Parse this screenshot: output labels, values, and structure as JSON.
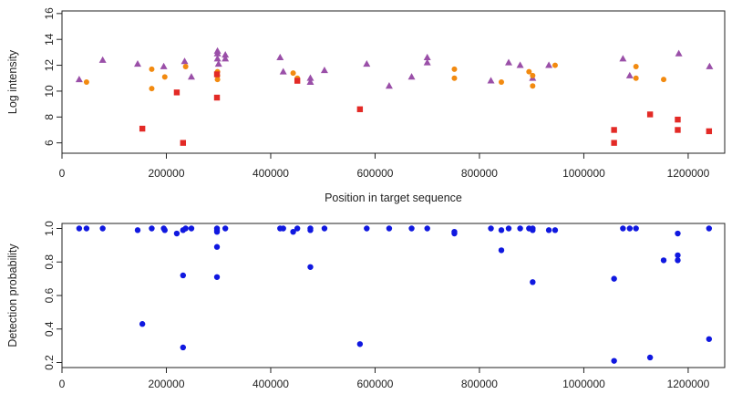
{
  "colors": {
    "purple": "#9a4fa8",
    "orange": "#f28a10",
    "red": "#e32a26",
    "blue": "#1018e0",
    "axis": "#222222"
  },
  "chart_data": [
    {
      "type": "scatter",
      "title": "",
      "xlabel": "Position in target sequence",
      "ylabel": "Log intensity",
      "xlim": [
        0,
        1270000
      ],
      "ylim": [
        5.2,
        16.2
      ],
      "xticks": [
        0,
        200000,
        400000,
        600000,
        800000,
        1000000,
        1200000
      ],
      "xtick_labels": [
        "0",
        "200000",
        "400000",
        "600000",
        "800000",
        "1000000",
        "1200000"
      ],
      "yticks": [
        6,
        8,
        10,
        12,
        14,
        16
      ],
      "ytick_labels": [
        "6",
        "8",
        "10",
        "12",
        "14",
        "16"
      ],
      "grid": false,
      "series": [
        {
          "marker": "triangle",
          "color": "purple",
          "points": [
            [
              33000,
              10.9
            ],
            [
              78000,
              12.4
            ],
            [
              145000,
              12.1
            ],
            [
              195000,
              11.9
            ],
            [
              235000,
              12.3
            ],
            [
              248000,
              11.1
            ],
            [
              298000,
              13.1
            ],
            [
              298000,
              12.9
            ],
            [
              298000,
              12.5
            ],
            [
              300000,
              12.1
            ],
            [
              313000,
              12.8
            ],
            [
              313000,
              12.5
            ],
            [
              418000,
              12.6
            ],
            [
              424000,
              11.5
            ],
            [
              476000,
              11.0
            ],
            [
              476000,
              10.7
            ],
            [
              503000,
              11.6
            ],
            [
              584000,
              12.1
            ],
            [
              627000,
              10.4
            ],
            [
              670000,
              11.1
            ],
            [
              700000,
              12.6
            ],
            [
              700000,
              12.2
            ],
            [
              822000,
              10.8
            ],
            [
              856000,
              12.2
            ],
            [
              878000,
              12.0
            ],
            [
              902000,
              11.0
            ],
            [
              933000,
              12.0
            ],
            [
              1075000,
              12.5
            ],
            [
              1088000,
              11.2
            ],
            [
              1182000,
              12.9
            ],
            [
              1241000,
              11.9
            ]
          ]
        },
        {
          "marker": "circle",
          "color": "orange",
          "points": [
            [
              47000,
              10.7
            ],
            [
              172000,
              11.7
            ],
            [
              172000,
              10.2
            ],
            [
              197000,
              11.1
            ],
            [
              237000,
              11.9
            ],
            [
              298000,
              11.5
            ],
            [
              298000,
              11.2
            ],
            [
              298000,
              10.9
            ],
            [
              443000,
              11.4
            ],
            [
              451000,
              11.0
            ],
            [
              752000,
              11.7
            ],
            [
              752000,
              11.0
            ],
            [
              842000,
              10.7
            ],
            [
              895000,
              11.5
            ],
            [
              902000,
              11.2
            ],
            [
              902000,
              10.4
            ],
            [
              945000,
              12.0
            ],
            [
              1100000,
              11.9
            ],
            [
              1100000,
              11.0
            ],
            [
              1153000,
              10.9
            ]
          ]
        },
        {
          "marker": "square",
          "color": "red",
          "points": [
            [
              154000,
              7.1
            ],
            [
              220000,
              9.9
            ],
            [
              232000,
              6.0
            ],
            [
              297000,
              11.3
            ],
            [
              297000,
              9.5
            ],
            [
              451000,
              10.8
            ],
            [
              571000,
              8.6
            ],
            [
              1058000,
              7.0
            ],
            [
              1058000,
              6.0
            ],
            [
              1127000,
              8.2
            ],
            [
              1180000,
              7.8
            ],
            [
              1180000,
              7.0
            ],
            [
              1240000,
              6.9
            ]
          ]
        }
      ]
    },
    {
      "type": "scatter",
      "title": "",
      "xlabel": "",
      "ylabel": "Detection probability",
      "xlim": [
        0,
        1270000
      ],
      "ylim": [
        0.17,
        1.03
      ],
      "xticks": [
        0,
        200000,
        400000,
        600000,
        800000,
        1000000,
        1200000
      ],
      "xtick_labels": [
        "0",
        "200000",
        "400000",
        "600000",
        "800000",
        "1000000",
        "1200000"
      ],
      "yticks": [
        0.2,
        0.4,
        0.6,
        0.8,
        1.0
      ],
      "ytick_labels": [
        "0.2",
        "0.4",
        "0.6",
        "0.8",
        "1.0"
      ],
      "grid": false,
      "series": [
        {
          "marker": "circle",
          "color": "blue",
          "points": [
            [
              33000,
              1.0
            ],
            [
              47000,
              1.0
            ],
            [
              78000,
              1.0
            ],
            [
              145000,
              0.99
            ],
            [
              154000,
              0.43
            ],
            [
              172000,
              1.0
            ],
            [
              195000,
              1.0
            ],
            [
              197000,
              0.99
            ],
            [
              220000,
              0.97
            ],
            [
              232000,
              0.99
            ],
            [
              232000,
              0.72
            ],
            [
              232000,
              0.29
            ],
            [
              237000,
              1.0
            ],
            [
              248000,
              1.0
            ],
            [
              297000,
              1.0
            ],
            [
              297000,
              0.99
            ],
            [
              297000,
              0.98
            ],
            [
              297000,
              0.89
            ],
            [
              297000,
              0.71
            ],
            [
              313000,
              1.0
            ],
            [
              418000,
              1.0
            ],
            [
              424000,
              1.0
            ],
            [
              443000,
              0.98
            ],
            [
              451000,
              1.0
            ],
            [
              476000,
              1.0
            ],
            [
              476000,
              0.99
            ],
            [
              476000,
              0.77
            ],
            [
              503000,
              1.0
            ],
            [
              571000,
              0.31
            ],
            [
              584000,
              1.0
            ],
            [
              627000,
              1.0
            ],
            [
              670000,
              1.0
            ],
            [
              700000,
              1.0
            ],
            [
              752000,
              0.98
            ],
            [
              752000,
              0.97
            ],
            [
              822000,
              1.0
            ],
            [
              842000,
              0.99
            ],
            [
              842000,
              0.87
            ],
            [
              856000,
              1.0
            ],
            [
              878000,
              1.0
            ],
            [
              895000,
              1.0
            ],
            [
              902000,
              1.0
            ],
            [
              902000,
              0.99
            ],
            [
              902000,
              0.68
            ],
            [
              933000,
              0.99
            ],
            [
              945000,
              0.99
            ],
            [
              1058000,
              0.7
            ],
            [
              1058000,
              0.21
            ],
            [
              1075000,
              1.0
            ],
            [
              1088000,
              1.0
            ],
            [
              1100000,
              1.0
            ],
            [
              1127000,
              0.23
            ],
            [
              1153000,
              0.81
            ],
            [
              1180000,
              0.97
            ],
            [
              1180000,
              0.84
            ],
            [
              1180000,
              0.81
            ],
            [
              1240000,
              1.0
            ],
            [
              1240000,
              0.34
            ]
          ]
        }
      ]
    }
  ]
}
